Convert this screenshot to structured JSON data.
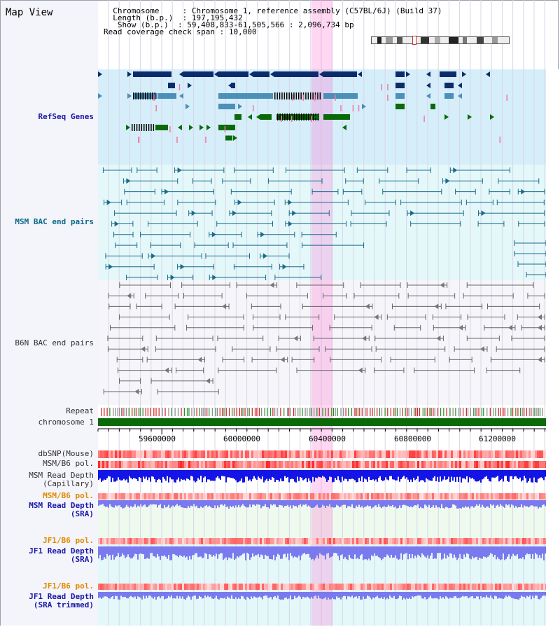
{
  "title": "Map View",
  "header": {
    "chrom_key": "Chromosome",
    "chrom_val": "Chromosome 1, reference assembly (C57BL/6J) (Build 37)",
    "length_key": "Length (b.p.)",
    "length_val": "197,195,432",
    "show_key": "Show (b.p.)",
    "show_val": "59,408,833-61,505,566 : 2,096,734 bp",
    "span_key": "Read coverage check span",
    "span_val": "10,000",
    "sep": ":"
  },
  "tracks": {
    "refseq": "RefSeq Genes",
    "msm_bac": "MSM BAC end pairs",
    "b6n_bac": "B6N BAC end pairs",
    "repeat": "Repeat",
    "chromosome": "chromosome 1",
    "dbsnp": "dbSNP(Mouse)",
    "msm_pol": "MSM/B6 pol.",
    "msm_depth_cap_1": "MSM Read Depth",
    "msm_depth_cap_2": "(Capillary)",
    "msm_pol_sra": "MSM/B6 pol.",
    "msm_depth_sra_1": "MSM Read Depth",
    "msm_depth_sra_2": "(SRA)",
    "jf1_pol": "JF1/B6 pol.",
    "jf1_depth_1": "JF1 Read Depth",
    "jf1_depth_2": "(SRA)",
    "jf1_pol_trim": "JF1/B6 pol.",
    "jf1_trim_1": "JF1 Read Depth",
    "jf1_trim_2": "(SRA trimmed)"
  },
  "axis": {
    "ticks": [
      "59600000",
      "60000000",
      "60400000",
      "60800000",
      "61200000"
    ]
  },
  "colors": {
    "refseq_bg": "#d6eefa",
    "msm_bg": "#e4f8fa",
    "b6n_bg": "#f4f4f8",
    "highlight": "#ff6ed2",
    "dark_navy": "#0b2c6b",
    "steel_blue": "#4a90b8",
    "gene_green": "#0a6a0a",
    "msm_line": "#1a6a8a",
    "depth_blue": "#1414e6",
    "depth_light": "#7a7aee",
    "pol_red": "#ff3a3a"
  }
}
